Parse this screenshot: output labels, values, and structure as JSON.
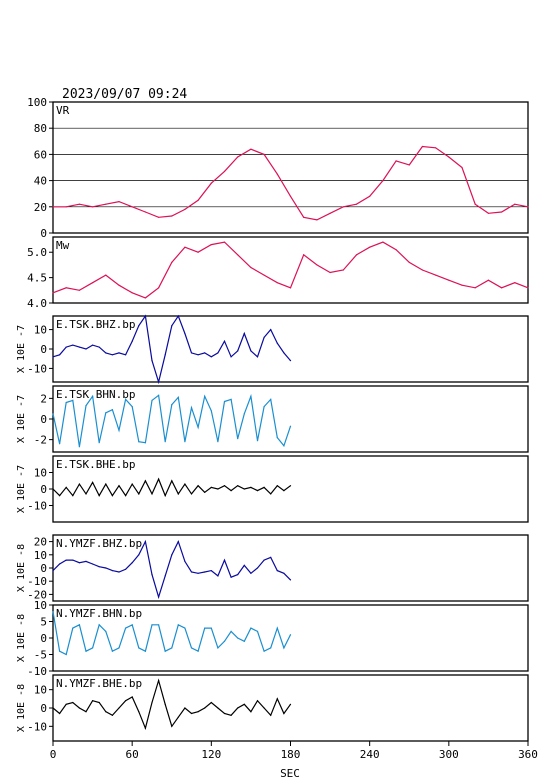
{
  "timestamp": "2023/09/07 09:24",
  "colors": {
    "vr": "#dd1155",
    "mw": "#dd1155",
    "dark": "#0a0aa0",
    "light": "#1a8fd0",
    "black": "#000000"
  },
  "chart_data": [
    {
      "type": "line",
      "label": "VR",
      "ylim": [
        0,
        100
      ],
      "yticks": [
        "100",
        "80",
        "60",
        "40",
        "20",
        "0"
      ],
      "grid": true,
      "x": [
        0,
        10,
        20,
        30,
        40,
        50,
        60,
        70,
        80,
        90,
        100,
        110,
        120,
        130,
        140,
        150,
        160,
        170,
        180,
        190,
        200,
        210,
        220,
        230,
        240,
        250,
        260,
        270,
        280,
        290,
        300,
        310,
        320,
        330,
        340,
        350,
        360
      ],
      "values": [
        20,
        20,
        22,
        20,
        22,
        24,
        20,
        16,
        12,
        13,
        18,
        25,
        38,
        47,
        58,
        64,
        60,
        45,
        28,
        12,
        10,
        15,
        20,
        22,
        28,
        40,
        55,
        52,
        66,
        65,
        58,
        50,
        22,
        15,
        16,
        22,
        20
      ]
    },
    {
      "type": "line",
      "label": "Mw",
      "ylim": [
        4.0,
        5.3
      ],
      "yticks": [
        "5.0",
        "4.5",
        "4.0"
      ],
      "grid": false,
      "x": [
        0,
        10,
        20,
        30,
        40,
        50,
        60,
        70,
        80,
        90,
        100,
        110,
        120,
        130,
        140,
        150,
        160,
        170,
        180,
        190,
        200,
        210,
        220,
        230,
        240,
        250,
        260,
        270,
        280,
        290,
        300,
        310,
        320,
        330,
        340,
        350,
        360
      ],
      "values": [
        4.2,
        4.3,
        4.25,
        4.4,
        4.55,
        4.35,
        4.2,
        4.1,
        4.3,
        4.8,
        5.1,
        5.0,
        5.15,
        5.2,
        4.95,
        4.7,
        4.55,
        4.4,
        4.3,
        4.95,
        4.75,
        4.6,
        4.65,
        4.95,
        5.1,
        5.2,
        5.05,
        4.8,
        4.65,
        4.55,
        4.45,
        4.35,
        4.3,
        4.45,
        4.3,
        4.4,
        4.3
      ]
    },
    {
      "type": "line",
      "label": "E.TSK.BHZ.bp",
      "ylabel": "X 10E -7",
      "ylim": [
        -17,
        17
      ],
      "yticks": [
        "10",
        "0",
        "-10"
      ],
      "color": "dark",
      "x": [
        0,
        5,
        10,
        15,
        20,
        25,
        30,
        35,
        40,
        45,
        50,
        55,
        60,
        65,
        70,
        75,
        80,
        85,
        90,
        95,
        100,
        105,
        110,
        115,
        120,
        125,
        130,
        135,
        140,
        145,
        150,
        155,
        160,
        165,
        170,
        175,
        180
      ],
      "values": [
        -4,
        -3,
        1,
        2,
        1,
        0,
        2,
        1,
        -2,
        -3,
        -2,
        -3,
        4,
        12,
        18,
        -6,
        -17,
        -3,
        12,
        17,
        8,
        -2,
        -3,
        -2,
        -4,
        -2,
        4,
        -4,
        -1,
        8,
        -1,
        -4,
        6,
        10,
        3,
        -2,
        -6
      ]
    },
    {
      "type": "line",
      "label": "E.TSK.BHN.bp",
      "ylabel": "X 10E -7",
      "ylim": [
        -3.2,
        3.2
      ],
      "yticks": [
        "2",
        "0",
        "-2"
      ],
      "color": "light",
      "x": [
        0,
        5,
        10,
        15,
        20,
        25,
        30,
        35,
        40,
        45,
        50,
        55,
        60,
        65,
        70,
        75,
        80,
        85,
        90,
        95,
        100,
        105,
        110,
        115,
        120,
        125,
        130,
        135,
        140,
        145,
        150,
        155,
        160,
        165,
        170,
        175,
        180
      ],
      "values": [
        0.5,
        -2.4,
        1.6,
        1.8,
        -2.7,
        1.3,
        2.2,
        -2.3,
        0.6,
        0.9,
        -1.1,
        1.9,
        1.2,
        -2.2,
        -2.3,
        1.8,
        2.3,
        -2.2,
        1.4,
        2.1,
        -2.2,
        1.1,
        -0.8,
        2.2,
        0.8,
        -2.2,
        1.7,
        1.9,
        -1.9,
        0.5,
        2.2,
        -2.1,
        1.2,
        1.9,
        -1.8,
        -2.6,
        -0.7
      ]
    },
    {
      "type": "line",
      "label": "E.TSK.BHE.bp",
      "ylabel": "X 10E -7",
      "ylim": [
        -20,
        20
      ],
      "yticks": [
        "10",
        "0",
        "-10"
      ],
      "color": "black",
      "x": [
        0,
        5,
        10,
        15,
        20,
        25,
        30,
        35,
        40,
        45,
        50,
        55,
        60,
        65,
        70,
        75,
        80,
        85,
        90,
        95,
        100,
        105,
        110,
        115,
        120,
        125,
        130,
        135,
        140,
        145,
        150,
        155,
        160,
        165,
        170,
        175,
        180
      ],
      "values": [
        0,
        -4,
        1,
        -4,
        3,
        -3,
        4,
        -4,
        3,
        -4,
        2,
        -4,
        3,
        -3,
        5,
        -3,
        6,
        -4,
        5,
        -3,
        3,
        -3,
        2,
        -2,
        1,
        0,
        2,
        -1,
        2,
        0,
        1,
        -1,
        1,
        -3,
        2,
        -1,
        2
      ]
    },
    {
      "type": "line",
      "label": "N.YMZF.BHZ.bp",
      "ylabel": "X 10E -8",
      "ylim": [
        -25,
        25
      ],
      "yticks": [
        "20",
        "10",
        "0",
        "-10",
        "-20"
      ],
      "color": "dark",
      "x": [
        0,
        5,
        10,
        15,
        20,
        25,
        30,
        35,
        40,
        45,
        50,
        55,
        60,
        65,
        70,
        75,
        80,
        85,
        90,
        95,
        100,
        105,
        110,
        115,
        120,
        125,
        130,
        135,
        140,
        145,
        150,
        155,
        160,
        165,
        170,
        175,
        180
      ],
      "values": [
        -2,
        3,
        6,
        6,
        4,
        5,
        3,
        1,
        0,
        -2,
        -3,
        -1,
        4,
        10,
        20,
        -5,
        -22,
        -6,
        10,
        20,
        5,
        -3,
        -4,
        -3,
        -2,
        -6,
        6,
        -7,
        -5,
        2,
        -4,
        0,
        6,
        8,
        -2,
        -4,
        -9
      ]
    },
    {
      "type": "line",
      "label": "N.YMZF.BHN.bp",
      "ylabel": "X 10E -8",
      "ylim": [
        -10,
        10
      ],
      "yticks": [
        "10",
        "5",
        "0",
        "-5",
        "-10"
      ],
      "color": "light",
      "x": [
        0,
        5,
        10,
        15,
        20,
        25,
        30,
        35,
        40,
        45,
        50,
        55,
        60,
        65,
        70,
        75,
        80,
        85,
        90,
        95,
        100,
        105,
        110,
        115,
        120,
        125,
        130,
        135,
        140,
        145,
        150,
        155,
        160,
        165,
        170,
        175,
        180
      ],
      "values": [
        8,
        -4,
        -5,
        3,
        4,
        -4,
        -3,
        4,
        2,
        -4,
        -3,
        3,
        4,
        -3,
        -4,
        4,
        4,
        -4,
        -3,
        4,
        3,
        -3,
        -4,
        3,
        3,
        -3,
        -1,
        2,
        0,
        -1,
        3,
        2,
        -4,
        -3,
        3,
        -3,
        1
      ]
    },
    {
      "type": "line",
      "label": "N.YMZF.BHE.bp",
      "ylabel": "X 10E -8",
      "ylim": [
        -18,
        18
      ],
      "yticks": [
        "10",
        "0",
        "-10"
      ],
      "color": "black",
      "x": [
        0,
        5,
        10,
        15,
        20,
        25,
        30,
        35,
        40,
        45,
        50,
        55,
        60,
        65,
        70,
        75,
        80,
        85,
        90,
        95,
        100,
        105,
        110,
        115,
        120,
        125,
        130,
        135,
        140,
        145,
        150,
        155,
        160,
        165,
        170,
        175,
        180
      ],
      "values": [
        0,
        -3,
        2,
        3,
        0,
        -2,
        4,
        3,
        -2,
        -4,
        0,
        4,
        6,
        -2,
        -11,
        3,
        15,
        2,
        -10,
        -5,
        0,
        -3,
        -2,
        0,
        3,
        0,
        -3,
        -4,
        0,
        2,
        -2,
        4,
        0,
        -4,
        5,
        -3,
        2
      ]
    }
  ],
  "xticks": [
    "0",
    "60",
    "120",
    "180",
    "240",
    "300",
    "360"
  ],
  "xlabel": "SEC"
}
